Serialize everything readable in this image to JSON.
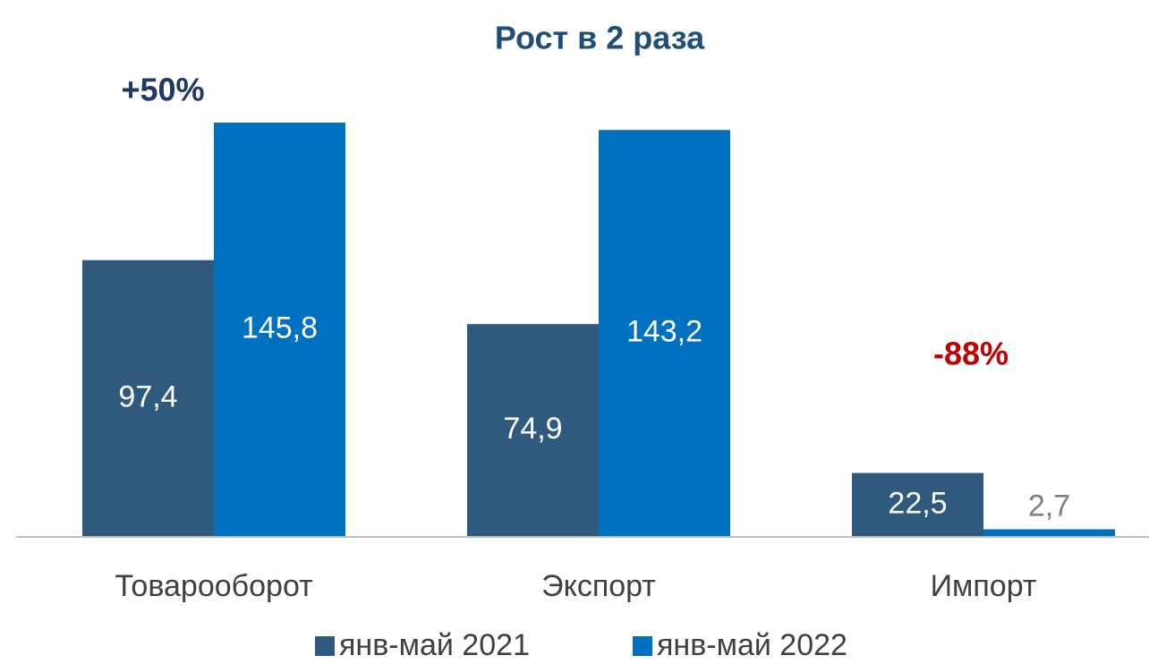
{
  "chart_data": {
    "type": "bar",
    "title": "Рост в 2 раза",
    "annotations": [
      "+50%",
      "-88%"
    ],
    "categories": [
      "Товарооборот",
      "Экспорт",
      "Импорт"
    ],
    "series": [
      {
        "name": "янв-май 2021",
        "color": "#2f5a7e",
        "values": [
          97.4,
          74.9,
          22.5
        ],
        "value_labels": [
          "97,4",
          "74,9",
          "22,5"
        ]
      },
      {
        "name": "янв-май 2022",
        "color": "#0070c0",
        "values": [
          145.8,
          143.2,
          2.7
        ],
        "value_labels": [
          "145,8",
          "143,2",
          "2,7"
        ]
      }
    ],
    "legend": "bottom"
  }
}
